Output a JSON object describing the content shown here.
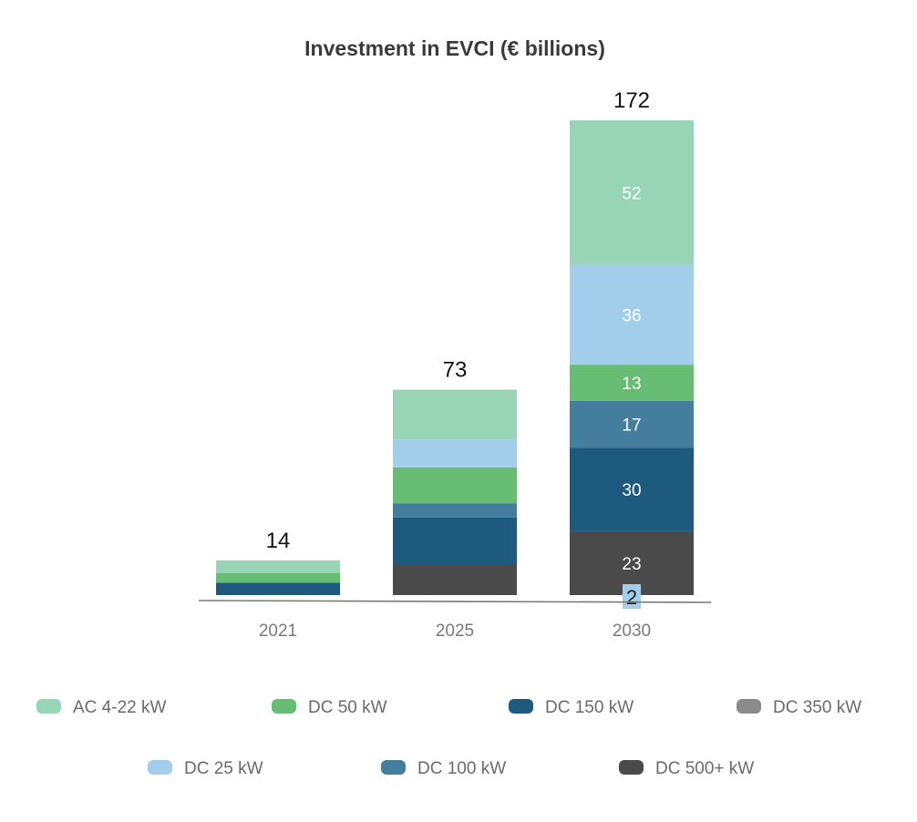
{
  "chart_data": {
    "type": "bar",
    "stacked": true,
    "title": "Investment in EVCI (€ billions)",
    "categories": [
      "2021",
      "2025",
      "2030"
    ],
    "totals": [
      "14",
      "73",
      "172"
    ],
    "ylim": [
      0,
      172
    ],
    "grid": false,
    "legend_position": "bottom",
    "series": [
      {
        "name": "DC 500+ kW",
        "color": "#4a4a4a",
        "values": [
          0,
          11,
          23
        ],
        "labels": [
          "",
          "",
          "23"
        ]
      },
      {
        "name": "DC 150 kW",
        "color": "#1e5a7e",
        "values": [
          4.5,
          17,
          30
        ],
        "labels": [
          "",
          "",
          "30"
        ]
      },
      {
        "name": "DC 100 kW",
        "color": "#457d9f",
        "values": [
          0,
          5,
          17
        ],
        "labels": [
          "",
          "",
          "17"
        ]
      },
      {
        "name": "DC 50 kW",
        "color": "#66bd73",
        "values": [
          3.5,
          13,
          13
        ],
        "labels": [
          "",
          "",
          "13"
        ]
      },
      {
        "name": "DC 25 kW",
        "color": "#a2ceec",
        "values": [
          0,
          10,
          36
        ],
        "labels": [
          "",
          "",
          "36"
        ]
      },
      {
        "name": "AC 4-22 kW",
        "color": "#98d5b6",
        "values": [
          4.5,
          18,
          52
        ],
        "labels": [
          "",
          "",
          "52"
        ]
      }
    ],
    "legend_order": [
      "AC 4-22 kW",
      "DC 50 kW",
      "DC 150 kW",
      "DC 350 kW",
      "DC 25 kW",
      "DC 100 kW",
      "DC 500+ kW"
    ],
    "legend_colors": {
      "AC 4-22 kW": "#98d5b6",
      "DC 50 kW": "#66bd73",
      "DC 150 kW": "#1e5a7e",
      "DC 350 kW": "#8a8a8a",
      "DC 25 kW": "#a2ceec",
      "DC 100 kW": "#457d9f",
      "DC 500+ kW": "#4a4a4a"
    },
    "annotation": {
      "category": "2030",
      "series": "DC 350 kW",
      "value": 2,
      "label": "2",
      "color": "#a2ceec"
    }
  }
}
